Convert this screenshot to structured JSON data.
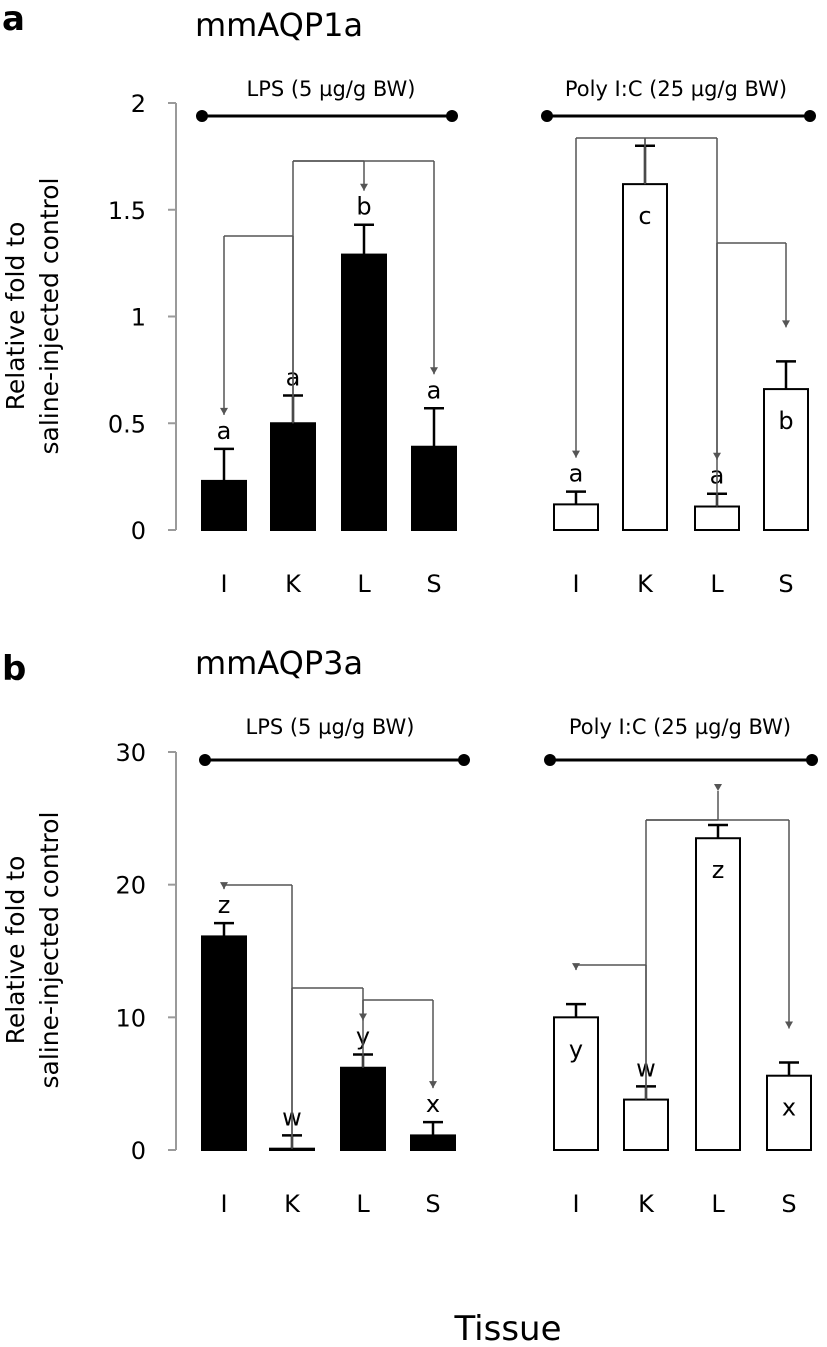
{
  "xlabel": "Tissue",
  "chart_data": [
    {
      "type": "bar",
      "panel": "a",
      "title": "mmAQP1a",
      "ylabel_line1": "Relative fold to",
      "ylabel_line2": "saline-injected control",
      "ylim": [
        0,
        2
      ],
      "yticks": [
        0,
        0.5,
        1,
        1.5,
        2
      ],
      "ytick_labels": [
        "0",
        "0.5",
        "1",
        "1.5",
        "2"
      ],
      "groups": [
        {
          "name": "LPS (5 µg/g BW)",
          "categories": [
            "I",
            "K",
            "L",
            "S"
          ],
          "values": [
            0.23,
            0.5,
            1.29,
            0.39
          ],
          "errors": [
            0.15,
            0.13,
            0.14,
            0.18
          ],
          "letters": [
            "a",
            "a",
            "b",
            "a"
          ],
          "fill": "#000000"
        },
        {
          "name": "Poly I:C (25 µg/g BW)",
          "categories": [
            "I",
            "K",
            "L",
            "S"
          ],
          "values": [
            0.12,
            1.62,
            0.11,
            0.66
          ],
          "errors": [
            0.06,
            0.18,
            0.06,
            0.13
          ],
          "letters": [
            "a",
            "c",
            "a",
            "b"
          ],
          "fill": "#ffffff"
        }
      ]
    },
    {
      "type": "bar",
      "panel": "b",
      "title": "mmAQP3a",
      "ylabel_line1": "Relative fold to",
      "ylabel_line2": "saline-injected control",
      "ylim": [
        0,
        30
      ],
      "yticks": [
        0,
        10,
        20,
        30
      ],
      "ytick_labels": [
        "0",
        "10",
        "20",
        "30"
      ],
      "groups": [
        {
          "name": "LPS (5 µg/g BW)",
          "categories": [
            "I",
            "K",
            "L",
            "S"
          ],
          "values": [
            16.1,
            0.1,
            6.2,
            1.1
          ],
          "errors": [
            1.0,
            1.0,
            1.0,
            1.0
          ],
          "letters": [
            "z",
            "w",
            "y",
            "x"
          ],
          "fill": "#000000"
        },
        {
          "name": "Poly I:C (25 µg/g BW)",
          "categories": [
            "I",
            "K",
            "L",
            "S"
          ],
          "values": [
            10.0,
            3.8,
            23.5,
            5.6
          ],
          "errors": [
            1.0,
            1.0,
            1.0,
            1.0
          ],
          "letters": [
            "y",
            "w",
            "z",
            "x"
          ],
          "fill": "#ffffff"
        }
      ]
    }
  ]
}
